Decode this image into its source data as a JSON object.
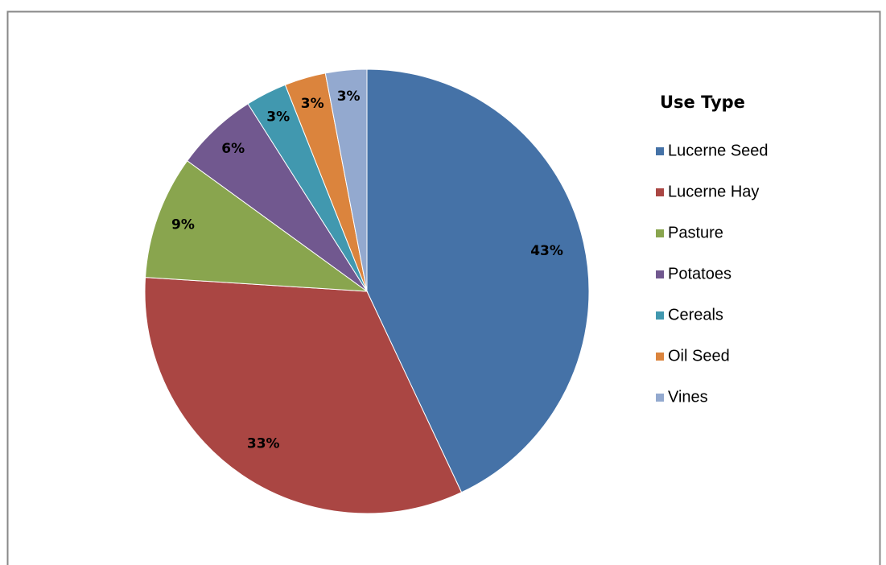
{
  "chart_data": {
    "type": "pie",
    "legend_title": "Use Type",
    "categories": [
      "Lucerne Seed",
      "Lucerne Hay",
      "Pasture",
      "Potatoes",
      "Cereals",
      "Oil Seed",
      "Vines"
    ],
    "values": [
      43,
      33,
      9,
      6,
      3,
      3,
      3
    ],
    "value_labels": [
      "43%",
      "33%",
      "9%",
      "6%",
      "3%",
      "3%",
      "3%"
    ],
    "colors": [
      "#4572a7",
      "#aa4643",
      "#89a54e",
      "#71588f",
      "#4198af",
      "#db843d",
      "#93a9cf"
    ],
    "legend": "right"
  }
}
